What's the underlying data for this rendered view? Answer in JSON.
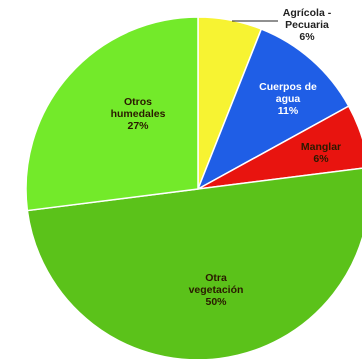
{
  "chart_data": {
    "type": "pie",
    "title": "",
    "start_angle_deg": 0,
    "direction": "clockwise",
    "legend": "none",
    "slices": [
      {
        "name_lines": [
          "Agrícola -",
          "Pecuaria"
        ],
        "value": 6,
        "label": "6%",
        "color": "#f7f332"
      },
      {
        "name_lines": [
          "Cuerpos de",
          "agua"
        ],
        "value": 11,
        "label": "11%",
        "color": "#1f5ee6"
      },
      {
        "name_lines": [
          "Manglar"
        ],
        "value": 6,
        "label": "6%",
        "color": "#e8140f"
      },
      {
        "name_lines": [
          "Otra",
          "vegetación"
        ],
        "value": 50,
        "label": "50%",
        "color": "#5bc21a"
      },
      {
        "name_lines": [
          "Otros",
          "humedales"
        ],
        "value": 27,
        "label": "27%",
        "color": "#73ea2a"
      }
    ]
  }
}
